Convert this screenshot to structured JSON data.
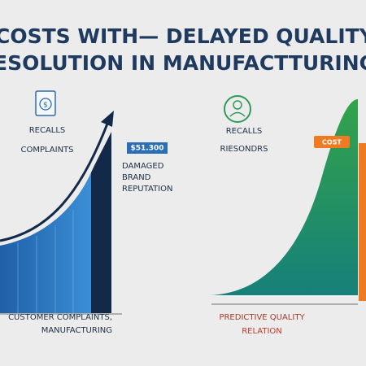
{
  "header": {
    "title_line1": "COSTS WITH— DELAYED QUALITY",
    "title_line2": "ESOLUTION IN MANUFACTTURING"
  },
  "left_panel": {
    "label1": "RECALLS",
    "label2": "COMPLAINTS",
    "price_tag": "$51.300",
    "side_labels": [
      "DAMAGED",
      "BRAND",
      "REPUTATION"
    ],
    "footer": [
      "CUSTOMER COMPLAINTS,",
      "MANUFACTURING"
    ]
  },
  "right_panel": {
    "label1": "RECALLS",
    "label2": "RIESONDRS",
    "tag": "COST",
    "footer": [
      "PREDICTIVE QUALITY",
      "RELATION"
    ]
  }
}
